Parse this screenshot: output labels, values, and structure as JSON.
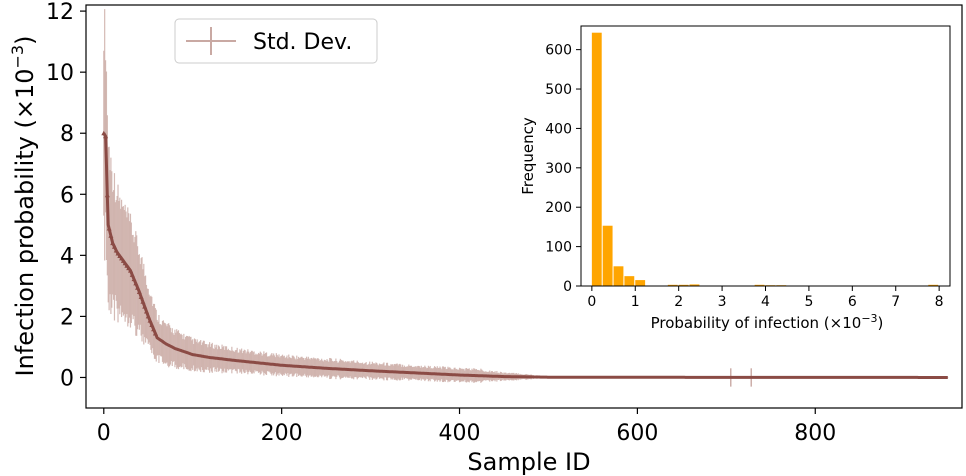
{
  "chart_data": [
    {
      "type": "scatter",
      "subtype": "errorbar",
      "title": "",
      "xlabel": "Sample ID",
      "ylabel": "Infection probability (×10",
      "ylabel_exponent": "−3",
      "ylabel_suffix": ")",
      "xlim": [
        -20,
        965
      ],
      "ylim": [
        -1,
        12.2
      ],
      "xticks": [
        0,
        200,
        400,
        600,
        800
      ],
      "yticks": [
        0,
        2,
        4,
        6,
        8,
        10,
        12
      ],
      "grid": false,
      "legend": {
        "position": "top-left",
        "entries": [
          "Std. Dev."
        ]
      },
      "series_color": "#8B4B45",
      "errorbar_color": "#C9A9A3",
      "n_samples": 950,
      "series": [
        {
          "name": "Std. Dev.",
          "x": [
            0,
            2,
            5,
            10,
            15,
            20,
            25,
            30,
            40,
            50,
            60,
            70,
            80,
            100,
            120,
            150,
            200,
            250,
            300,
            350,
            400,
            420,
            450,
            475,
            500,
            600,
            700,
            800,
            900,
            945
          ],
          "y": [
            8.0,
            7.9,
            5.0,
            4.4,
            4.1,
            3.9,
            3.7,
            3.5,
            2.8,
            2.0,
            1.3,
            1.1,
            0.95,
            0.75,
            0.65,
            0.55,
            0.4,
            0.3,
            0.22,
            0.15,
            0.08,
            0.06,
            0.03,
            0.02,
            0.01,
            0.005,
            0.003,
            0.002,
            0.001,
            0.0
          ],
          "err": [
            3.6,
            3.2,
            2.6,
            2.2,
            1.9,
            1.7,
            1.6,
            1.5,
            1.3,
            1.0,
            0.7,
            0.6,
            0.55,
            0.45,
            0.4,
            0.35,
            0.3,
            0.28,
            0.25,
            0.22,
            0.2,
            0.2,
            0.12,
            0.08,
            0.02,
            0.02,
            0.02,
            0.01,
            0.01,
            0.01
          ]
        }
      ]
    },
    {
      "type": "bar",
      "subtype": "histogram",
      "title": "",
      "xlabel": "Probability of infection (×10",
      "xlabel_exponent": "−3",
      "xlabel_suffix": ")",
      "ylabel": "Frequency",
      "xlim": [
        -0.25,
        8.25
      ],
      "ylim": [
        0,
        660
      ],
      "xticks": [
        0,
        1,
        2,
        3,
        4,
        5,
        6,
        7,
        8
      ],
      "yticks": [
        0,
        100,
        200,
        300,
        400,
        500,
        600
      ],
      "bar_color": "#FFA500",
      "bin_width": 0.25,
      "bins": [
        {
          "x0": 0.0,
          "value": 643
        },
        {
          "x0": 0.25,
          "value": 153
        },
        {
          "x0": 0.5,
          "value": 50
        },
        {
          "x0": 0.75,
          "value": 25
        },
        {
          "x0": 1.0,
          "value": 15
        },
        {
          "x0": 1.25,
          "value": 0
        },
        {
          "x0": 1.75,
          "value": 3
        },
        {
          "x0": 2.0,
          "value": 3
        },
        {
          "x0": 2.25,
          "value": 4
        },
        {
          "x0": 3.75,
          "value": 3
        },
        {
          "x0": 4.0,
          "value": 2
        },
        {
          "x0": 4.25,
          "value": 2
        },
        {
          "x0": 7.75,
          "value": 3
        }
      ]
    }
  ]
}
